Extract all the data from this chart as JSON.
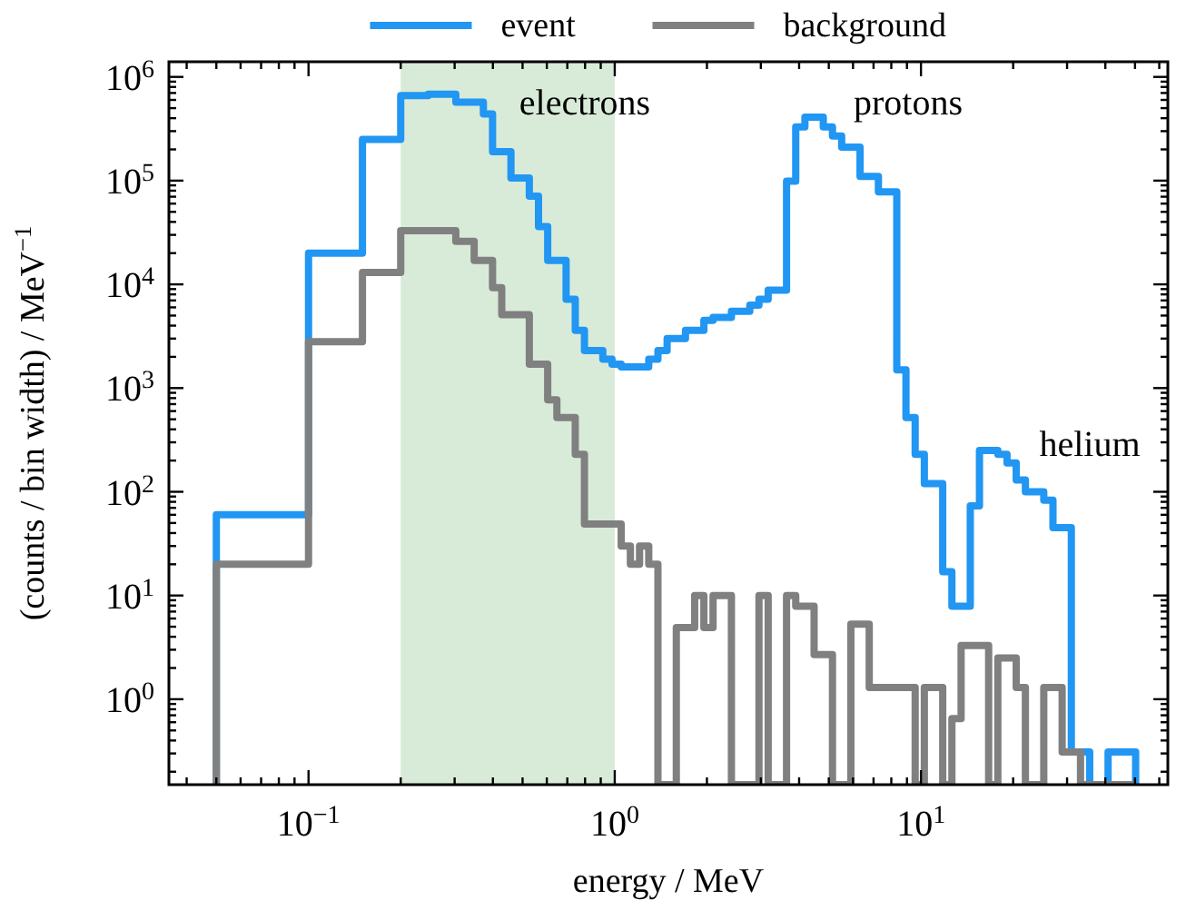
{
  "chart_data": {
    "type": "histogram",
    "xlabel": "energy / MeV",
    "ylabel": "(counts / bin width) / MeV$^{−1}$",
    "log": "xy",
    "legend": "top",
    "xlim": [
      0.035,
      64
    ],
    "ylim": [
      0.15,
      1400000
    ],
    "xticks": [
      {
        "value": 0.04,
        "label": null
      },
      {
        "value": 0.05,
        "label": null
      },
      {
        "value": 0.06,
        "label": null
      },
      {
        "value": 0.07,
        "label": null
      },
      {
        "value": 0.08,
        "label": null
      },
      {
        "value": 0.09,
        "label": null
      },
      {
        "value": 0.1,
        "label": "10$^{−1}$"
      },
      {
        "value": 0.2,
        "label": null
      },
      {
        "value": 0.3,
        "label": null
      },
      {
        "value": 0.4,
        "label": null
      },
      {
        "value": 0.5,
        "label": null
      },
      {
        "value": 0.6,
        "label": null
      },
      {
        "value": 0.7,
        "label": null
      },
      {
        "value": 0.8,
        "label": null
      },
      {
        "value": 0.9,
        "label": null
      },
      {
        "value": 1,
        "label": "10$^{0}$"
      },
      {
        "value": 2,
        "label": null
      },
      {
        "value": 3,
        "label": null
      },
      {
        "value": 4,
        "label": null
      },
      {
        "value": 5,
        "label": null
      },
      {
        "value": 6,
        "label": null
      },
      {
        "value": 7,
        "label": null
      },
      {
        "value": 8,
        "label": null
      },
      {
        "value": 9,
        "label": null
      },
      {
        "value": 10,
        "label": "10$^{1}$"
      },
      {
        "value": 20,
        "label": null
      },
      {
        "value": 30,
        "label": null
      },
      {
        "value": 40,
        "label": null
      },
      {
        "value": 50,
        "label": null
      },
      {
        "value": 60,
        "label": null
      }
    ],
    "yticks": [
      {
        "value": 0.2,
        "label": null
      },
      {
        "value": 0.3,
        "label": null
      },
      {
        "value": 0.4,
        "label": null
      },
      {
        "value": 0.5,
        "label": null
      },
      {
        "value": 0.6,
        "label": null
      },
      {
        "value": 0.7,
        "label": null
      },
      {
        "value": 0.8,
        "label": null
      },
      {
        "value": 0.9,
        "label": null
      },
      {
        "value": 1,
        "label": "10$^{0}$"
      },
      {
        "value": 2,
        "label": null
      },
      {
        "value": 3,
        "label": null
      },
      {
        "value": 4,
        "label": null
      },
      {
        "value": 5,
        "label": null
      },
      {
        "value": 6,
        "label": null
      },
      {
        "value": 7,
        "label": null
      },
      {
        "value": 8,
        "label": null
      },
      {
        "value": 9,
        "label": null
      },
      {
        "value": 10,
        "label": "10$^{1}$"
      },
      {
        "value": 20,
        "label": null
      },
      {
        "value": 30,
        "label": null
      },
      {
        "value": 40,
        "label": null
      },
      {
        "value": 50,
        "label": null
      },
      {
        "value": 60,
        "label": null
      },
      {
        "value": 70,
        "label": null
      },
      {
        "value": 80,
        "label": null
      },
      {
        "value": 90,
        "label": null
      },
      {
        "value": 100,
        "label": "10$^{2}$"
      },
      {
        "value": 200,
        "label": null
      },
      {
        "value": 300,
        "label": null
      },
      {
        "value": 400,
        "label": null
      },
      {
        "value": 500,
        "label": null
      },
      {
        "value": 600,
        "label": null
      },
      {
        "value": 700,
        "label": null
      },
      {
        "value": 800,
        "label": null
      },
      {
        "value": 900,
        "label": null
      },
      {
        "value": 1000,
        "label": "10$^{3}$"
      },
      {
        "value": 2000,
        "label": null
      },
      {
        "value": 3000,
        "label": null
      },
      {
        "value": 4000,
        "label": null
      },
      {
        "value": 5000,
        "label": null
      },
      {
        "value": 6000,
        "label": null
      },
      {
        "value": 7000,
        "label": null
      },
      {
        "value": 8000,
        "label": null
      },
      {
        "value": 9000,
        "label": null
      },
      {
        "value": 10000,
        "label": "10$^{4}$"
      },
      {
        "value": 20000,
        "label": null
      },
      {
        "value": 30000,
        "label": null
      },
      {
        "value": 40000,
        "label": null
      },
      {
        "value": 50000,
        "label": null
      },
      {
        "value": 60000,
        "label": null
      },
      {
        "value": 70000,
        "label": null
      },
      {
        "value": 80000,
        "label": null
      },
      {
        "value": 90000,
        "label": null
      },
      {
        "value": 100000,
        "label": "10$^{5}$"
      },
      {
        "value": 200000,
        "label": null
      },
      {
        "value": 300000,
        "label": null
      },
      {
        "value": 400000,
        "label": null
      },
      {
        "value": 500000,
        "label": null
      },
      {
        "value": 600000,
        "label": null
      },
      {
        "value": 700000,
        "label": null
      },
      {
        "value": 800000,
        "label": null
      },
      {
        "value": 900000,
        "label": null
      },
      {
        "value": 1000000,
        "label": "10$^{6}$"
      }
    ],
    "bins": [
      0.05,
      0.1,
      0.15,
      0.2,
      0.2143,
      0.2296,
      0.246,
      0.2636,
      0.2825,
      0.3027,
      0.3243,
      0.3475,
      0.3724,
      0.399,
      0.4276,
      0.4582,
      0.4909,
      0.5261,
      0.5637,
      0.604,
      0.6472,
      0.6935,
      0.7431,
      0.7962,
      0.8532,
      0.9142,
      0.9796,
      1.0496,
      1.1247,
      1.2051,
      1.2913,
      1.3836,
      1.4826,
      1.5887,
      1.7023,
      1.824,
      1.9545,
      2.0942,
      2.244,
      2.4045,
      2.5764,
      2.7607,
      2.9581,
      3.1698,
      3.3965,
      3.6394,
      3.8997,
      4.1786,
      4.4774,
      4.7976,
      5.1407,
      5.5084,
      5.9023,
      6.3246,
      6.7769,
      7.2616,
      7.7809,
      8.3373,
      8.9337,
      9.5726,
      10.257,
      10.991,
      11.777,
      12.619,
      13.522,
      14.489,
      15.525,
      16.635,
      17.825,
      19.1,
      20.466,
      21.929,
      23.497,
      25.179,
      26.979,
      28.909,
      30.976,
      33.191,
      35.565,
      38.108,
      40.833,
      43.753,
      46.882,
      50.238
    ],
    "series": [
      {
        "name": "event",
        "color": "#2196f3",
        "values": [
          60,
          20000,
          250000,
          660000,
          660000,
          660000,
          680000,
          680000,
          680000,
          570000,
          570000,
          570000,
          440000,
          190000,
          190000,
          106000,
          106000,
          71000,
          36000,
          17000,
          17000,
          7200,
          3600,
          2300,
          2300,
          1900,
          1700,
          1600,
          1600,
          1600,
          1900,
          2300,
          3000,
          3000,
          3600,
          3600,
          4500,
          4800,
          4800,
          5500,
          5500,
          6300,
          7200,
          8800,
          8800,
          99000,
          330000,
          410000,
          410000,
          330000,
          270000,
          210000,
          210000,
          110000,
          110000,
          78000,
          78000,
          1500,
          520,
          230,
          120,
          120,
          17,
          7.9,
          7.9,
          73,
          250,
          250,
          230,
          190,
          130,
          100,
          100,
          83,
          45,
          45,
          0.31,
          0.31,
          null,
          null,
          0.31,
          0.31,
          0.31
        ]
      },
      {
        "name": "background",
        "color": "#808080",
        "values": [
          20,
          2800,
          13000,
          33000,
          33000,
          33000,
          33000,
          33000,
          33000,
          26000,
          26000,
          17000,
          17000,
          9300,
          5100,
          5100,
          5100,
          1700,
          1700,
          770,
          520,
          520,
          230,
          49,
          49,
          49,
          49,
          30,
          20,
          30,
          20,
          null,
          null,
          4.9,
          4.9,
          10,
          4.9,
          10,
          10,
          null,
          null,
          null,
          10,
          null,
          null,
          10,
          7.9,
          7.9,
          2.7,
          2.7,
          null,
          null,
          5.3,
          5.3,
          1.3,
          1.3,
          1.3,
          1.3,
          1.3,
          null,
          1.3,
          1.3,
          null,
          0.65,
          3.3,
          3.3,
          3.3,
          null,
          2.5,
          2.5,
          1.3,
          null,
          null,
          1.3,
          1.3,
          0.31,
          0.31,
          null,
          null,
          null,
          null,
          null,
          null
        ]
      }
    ],
    "bands": [
      {
        "axis": "x",
        "from": 0.2,
        "to": 1,
        "color": "#d8ebd8"
      }
    ],
    "annotations": [
      "electrons",
      "protons",
      "helium"
    ]
  }
}
